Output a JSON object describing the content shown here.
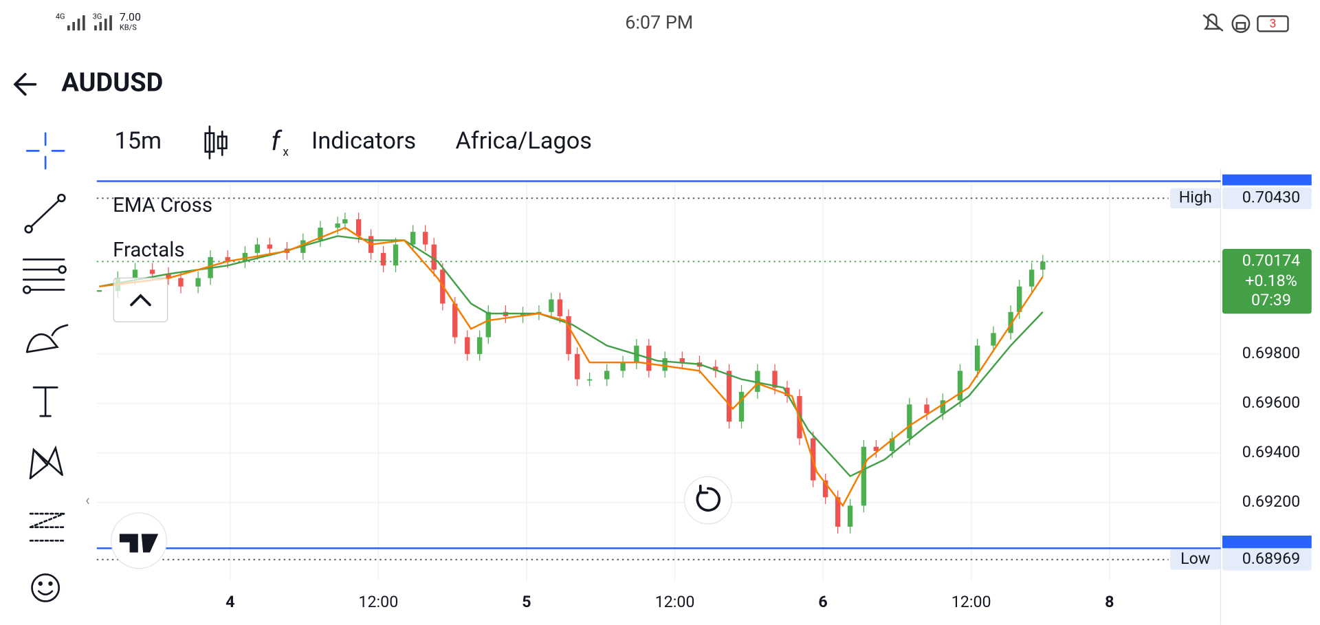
{
  "status_bar": {
    "network": [
      "4G",
      "3G"
    ],
    "speed": "7.00",
    "speed_unit": "KB/S",
    "time": "6:07 PM",
    "notifications": "3"
  },
  "header": {
    "title": "AUDUSD"
  },
  "toolbar": {
    "interval": "15m",
    "indicators": "Indicators",
    "timezone": "Africa/Lagos"
  },
  "chart_data": {
    "type": "candlestick",
    "legend": [
      "EMA Cross",
      "Fractals"
    ],
    "close": {
      "up_color": "#4caf50",
      "down_color": "#ef5350",
      "x": [
        -10.6,
        -9.1,
        -7.7,
        -6.3,
        -5.0,
        -4.0,
        -2.6,
        -1.6,
        -0.2,
        1.2,
        2.2,
        3.2,
        4.6,
        5.9,
        7.3,
        8.7,
        9.3,
        10.4,
        11.4,
        12.4,
        13.4,
        14.8,
        15.8,
        16.5,
        17.2,
        18.2,
        19.2,
        20.2,
        20.9,
        22.3,
        23.7,
        25.0,
        26.0,
        26.7,
        27.4,
        28.1,
        29.1,
        30.5,
        31.8,
        32.9,
        33.9,
        35.2,
        36.6,
        38.0,
        39.3,
        40.4,
        41.4,
        42.7,
        44.1,
        45.1,
        46.1,
        47.2,
        48.2,
        49.2,
        50.2,
        51.3,
        52.3,
        53.6,
        55.0,
        56.4,
        57.7,
        59.1,
        60.5,
        61.8,
        63.2,
        63.9,
        64.9,
        65.8
      ],
      "values": [
        0.70055,
        0.70107,
        0.70141,
        0.70124,
        0.70107,
        0.70073,
        0.70107,
        0.70192,
        0.70175,
        0.70209,
        0.70243,
        0.70226,
        0.70209,
        0.7026,
        0.70311,
        0.70328,
        0.70345,
        0.70277,
        0.70209,
        0.70158,
        0.70243,
        0.70294,
        0.70243,
        0.70141,
        0.70004,
        0.69868,
        0.698,
        0.69868,
        0.6997,
        0.69953,
        0.69964,
        0.6997,
        0.70021,
        0.69953,
        0.698,
        0.69698,
        0.69698,
        0.69732,
        0.69766,
        0.69834,
        0.69732,
        0.69783,
        0.69766,
        0.69749,
        0.69732,
        0.69527,
        0.69647,
        0.69732,
        0.69664,
        0.6963,
        0.69459,
        0.69289,
        0.69221,
        0.69102,
        0.69187,
        0.69425,
        0.69408,
        0.69459,
        0.69596,
        0.69561,
        0.69613,
        0.69732,
        0.69834,
        0.69885,
        0.6997,
        0.70073,
        0.70141,
        0.70174
      ]
    },
    "ema": [
      {
        "color": "#43a047",
        "x": [
          -10.6,
          -5.0,
          -0.2,
          3.9,
          8.7,
          11.4,
          14.1,
          16.8,
          19.5,
          20.9,
          25.0,
          27.7,
          30.5,
          34.6,
          38.0,
          41.4,
          44.8,
          46.8,
          50.2,
          53.0,
          56.4,
          59.8,
          63.2,
          65.8
        ],
        "values": [
          0.70073,
          0.70124,
          0.70158,
          0.70209,
          0.70277,
          0.7026,
          0.7026,
          0.70175,
          0.70004,
          0.69964,
          0.69964,
          0.69919,
          0.69834,
          0.69773,
          0.69759,
          0.69698,
          0.69664,
          0.69493,
          0.69306,
          0.69374,
          0.6951,
          0.6963,
          0.69834,
          0.6997
        ]
      },
      {
        "color": "#f57c00",
        "x": [
          -10.6,
          -5.0,
          -0.2,
          4.6,
          9.3,
          11.4,
          14.1,
          16.8,
          19.5,
          20.9,
          25.0,
          27.1,
          29.1,
          33.2,
          38.0,
          40.7,
          42.7,
          45.5,
          47.5,
          49.6,
          51.6,
          55.0,
          59.8,
          63.2,
          65.8
        ],
        "values": [
          0.70073,
          0.70107,
          0.70175,
          0.70216,
          0.70311,
          0.70243,
          0.7026,
          0.70107,
          0.69902,
          0.69936,
          0.69964,
          0.69936,
          0.69766,
          0.69766,
          0.69732,
          0.69579,
          0.69681,
          0.6963,
          0.69323,
          0.69187,
          0.69374,
          0.6951,
          0.69664,
          0.69919,
          0.70113
        ]
      }
    ],
    "xlim": [
      -10.8,
      80.2
    ],
    "ylim": [
      0.68882,
      0.70499
    ],
    "xticks": [
      {
        "value": 0,
        "label": "4"
      },
      {
        "value": 12,
        "label": "12:00"
      },
      {
        "value": 24,
        "label": "5"
      },
      {
        "value": 36,
        "label": "12:00"
      },
      {
        "value": 48,
        "label": "6"
      },
      {
        "value": 60,
        "label": "12:00"
      },
      {
        "value": 71.2,
        "label": "8"
      }
    ],
    "yticks": [
      {
        "value": 0.692,
        "label": "0.69200"
      },
      {
        "value": 0.694,
        "label": "0.69400"
      },
      {
        "value": 0.696,
        "label": "0.69600"
      },
      {
        "value": 0.698,
        "label": "0.69800"
      }
    ],
    "grid": true,
    "high": {
      "label": "High",
      "value": 0.7043,
      "value_label": "0.70430"
    },
    "low": {
      "label": "Low",
      "value": 0.68969,
      "value_label": "0.68969"
    },
    "last": {
      "value": 0.70174,
      "value_label": "0.70174",
      "change": 0.18,
      "change_label": "+0.18%",
      "countdown": "07:39",
      "color": "#43a047"
    }
  }
}
